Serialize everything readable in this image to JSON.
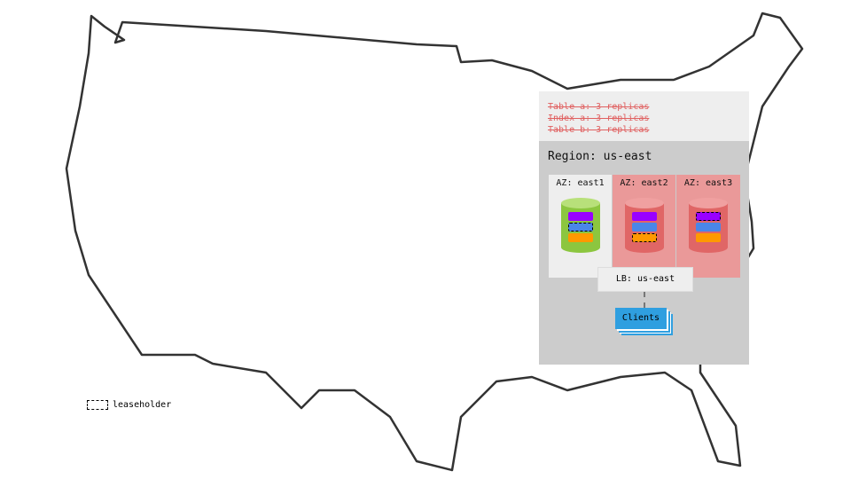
{
  "replicas": [
    "Table a: 3 replicas",
    "Index a: 3 replicas",
    "Table b: 3 replicas"
  ],
  "region": {
    "title": "Region: us-east"
  },
  "azs": [
    {
      "label": "AZ: east1",
      "status": "healthy",
      "leaseholder": "blue"
    },
    {
      "label": "AZ: east2",
      "status": "failed",
      "leaseholder": "orange"
    },
    {
      "label": "AZ: east3",
      "status": "failed",
      "leaseholder": "purple"
    }
  ],
  "lb": "LB: us-east",
  "clients": "Clients",
  "legend": {
    "leaseholder": "leaseholder"
  },
  "colors": {
    "healthy": "#8cc63f",
    "failed": "#e06666",
    "failed_bg": "#ea9999",
    "purple": "#9900ff",
    "blue": "#4a86e8",
    "orange": "#ff9900",
    "clients": "#2f9fe0"
  }
}
